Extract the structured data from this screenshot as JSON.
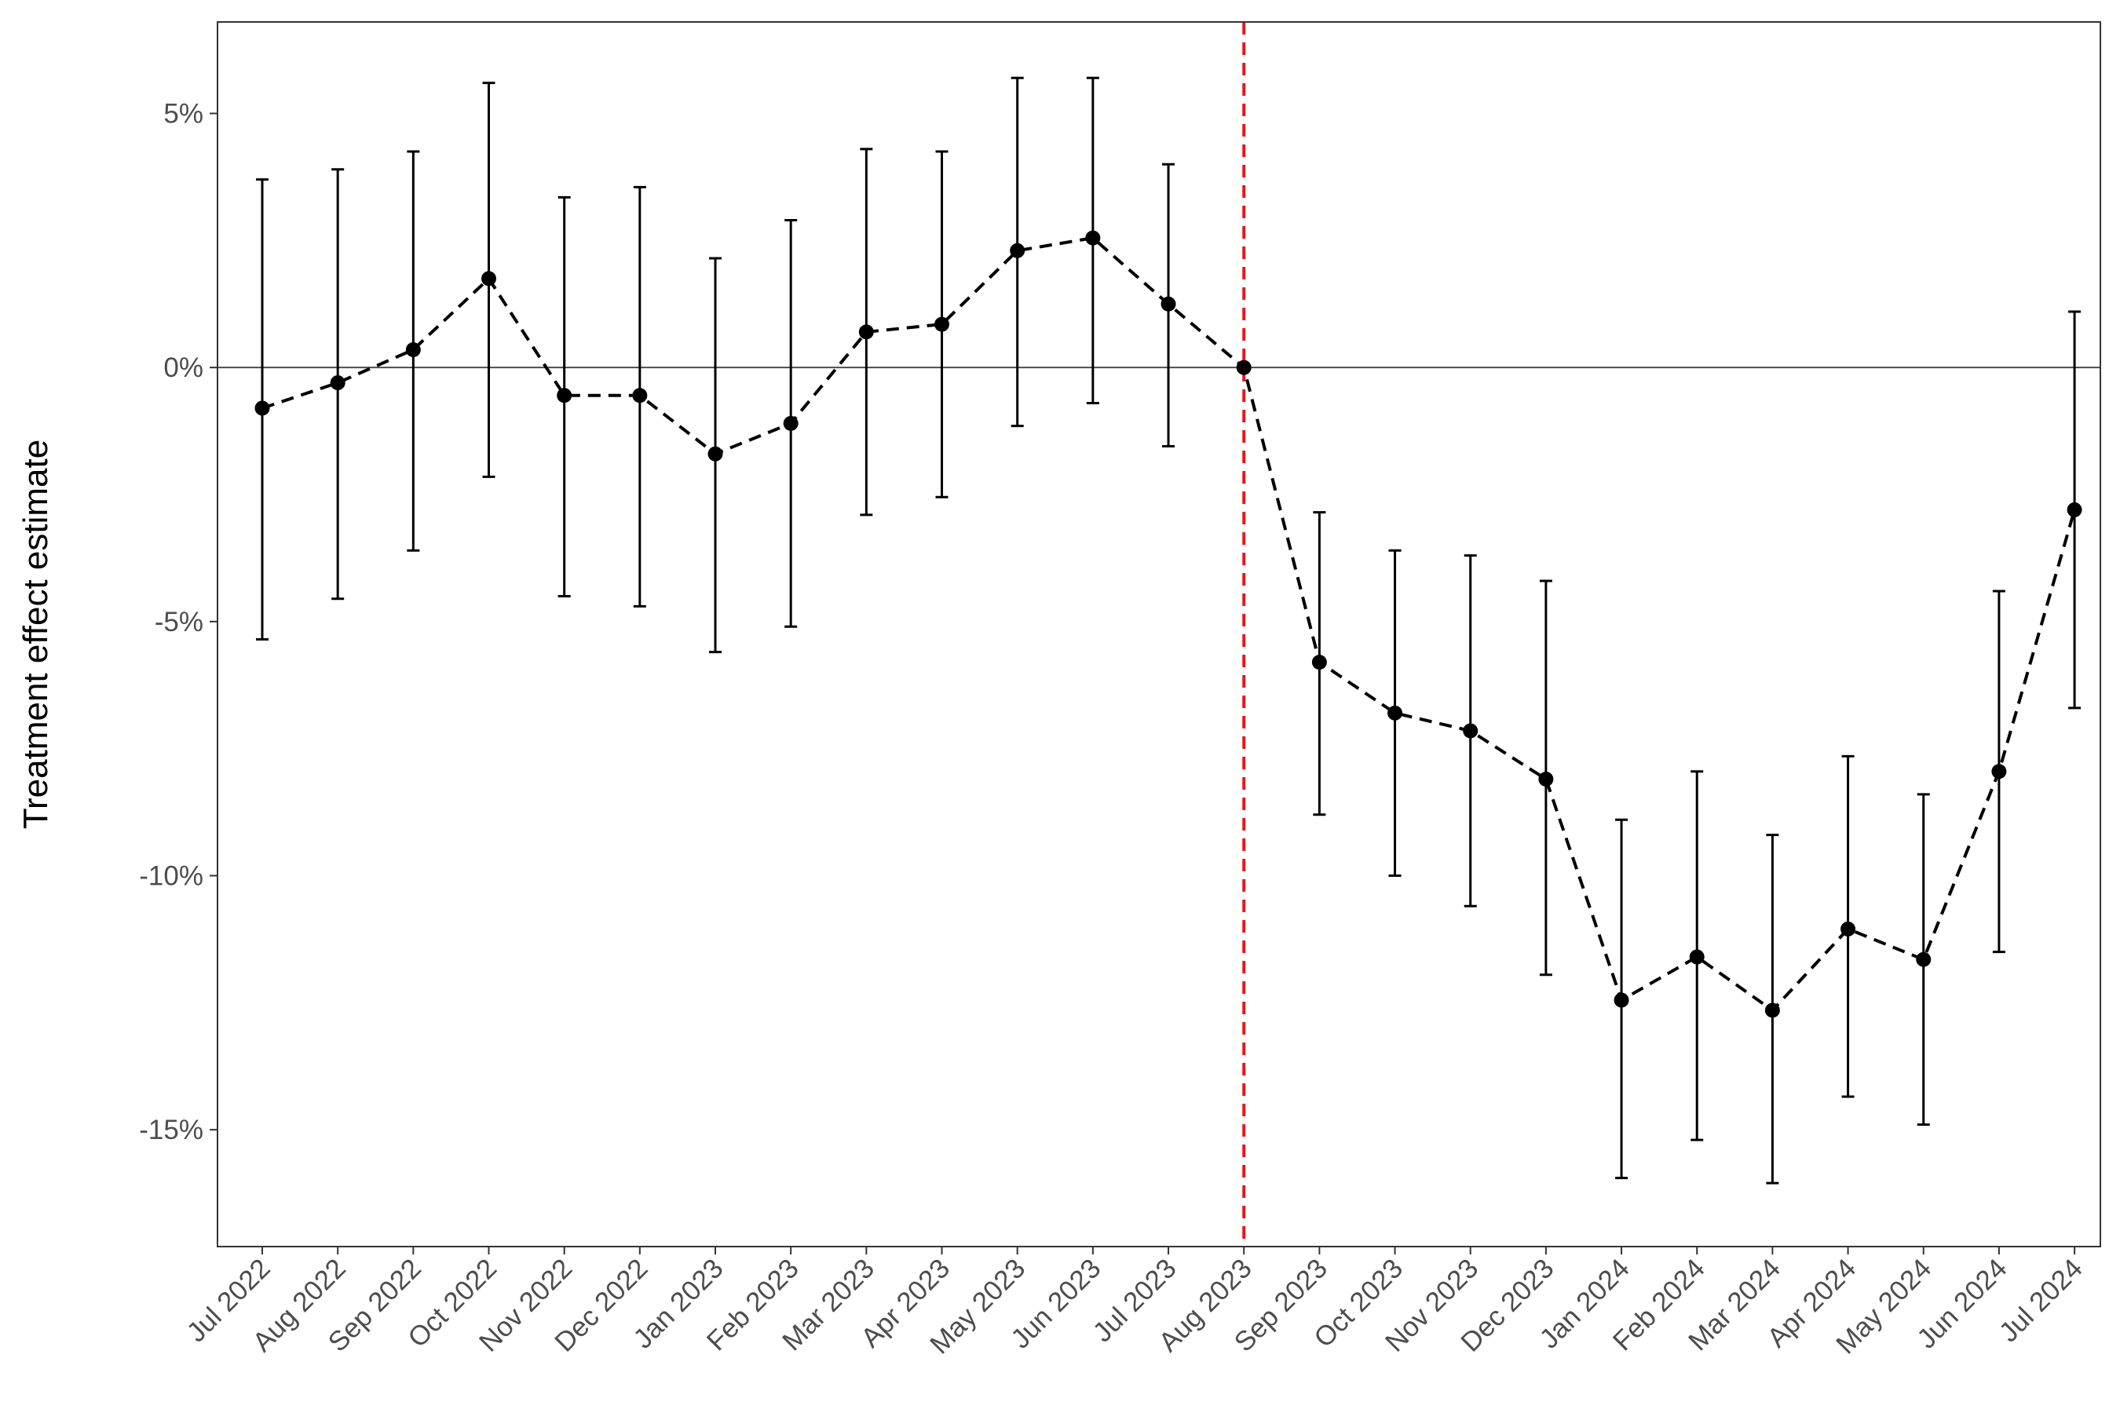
{
  "chart_data": {
    "type": "line",
    "title": "",
    "xlabel": "",
    "ylabel": "Treatment effect estimate",
    "categories": [
      "Jul 2022",
      "Aug 2022",
      "Sep 2022",
      "Oct 2022",
      "Nov 2022",
      "Dec 2022",
      "Jan 2023",
      "Feb 2023",
      "Mar 2023",
      "Apr 2023",
      "May 2023",
      "Jun 2023",
      "Jul 2023",
      "Aug 2023",
      "Sep 2023",
      "Oct 2023",
      "Nov 2023",
      "Dec 2023",
      "Jan 2024",
      "Feb 2024",
      "Mar 2024",
      "Apr 2024",
      "May 2024",
      "Jun 2024",
      "Jul 2024"
    ],
    "series": [
      {
        "values": [
          -0.8,
          -0.3,
          0.35,
          1.75,
          -0.55,
          -0.55,
          -1.7,
          -1.1,
          0.7,
          0.85,
          2.3,
          2.55,
          1.25,
          0.0,
          -5.8,
          -6.8,
          -7.15,
          -8.1,
          -12.45,
          -11.6,
          -12.65,
          -11.05,
          -11.65,
          -7.95,
          -2.8
        ],
        "lower": [
          -5.35,
          -4.55,
          -3.6,
          -2.15,
          -4.5,
          -4.7,
          -5.6,
          -5.1,
          -2.9,
          -2.55,
          -1.15,
          -0.7,
          -1.55,
          0.0,
          -8.8,
          -10.0,
          -10.6,
          -11.95,
          -15.95,
          -15.2,
          -16.05,
          -14.35,
          -14.9,
          -11.5,
          -6.7
        ],
        "upper": [
          3.7,
          3.9,
          4.25,
          5.6,
          3.35,
          3.55,
          2.15,
          2.9,
          4.3,
          4.25,
          5.7,
          5.7,
          4.0,
          0.0,
          -2.85,
          -3.6,
          -3.7,
          -4.2,
          -8.9,
          -7.95,
          -9.2,
          -7.65,
          -8.4,
          -4.4,
          1.1
        ],
        "color": "#000000",
        "line_style": "dashed"
      }
    ],
    "ylim": [
      -17.3,
      6.8
    ],
    "yticks": [
      5,
      0,
      -5,
      -10,
      -15
    ],
    "ytick_labels": [
      "5%",
      "0%",
      "-5%",
      "-10%",
      "-15%"
    ],
    "reference_hline": {
      "y": 0,
      "color": "#4d4d4d"
    },
    "reference_vline": {
      "category": "Aug 2023",
      "color": "#e31a1c",
      "line_style": "dashed"
    },
    "grid": false,
    "legend": "none"
  }
}
